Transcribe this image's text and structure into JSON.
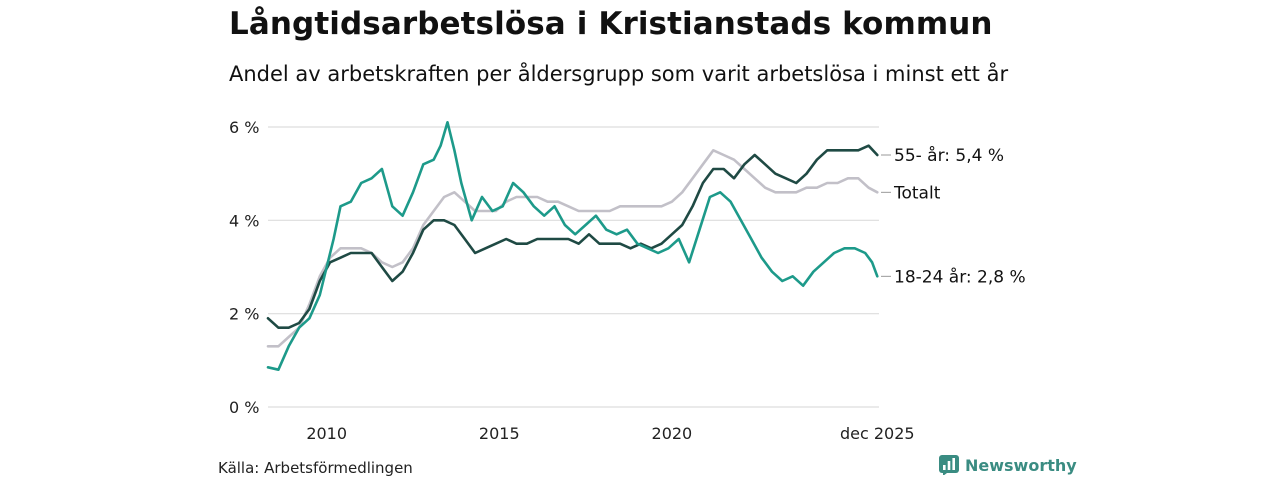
{
  "header": {
    "title": "Långtidsarbetslösa i Kristianstads kommun",
    "subtitle": "Andel av arbetskraften per åldersgrupp som varit arbetslösa i minst ett år"
  },
  "footer": {
    "source": "Källa: Arbetsförmedlingen",
    "brand": "Newsworthy"
  },
  "colors": {
    "age55": "#1f4a44",
    "total": "#c2c0c8",
    "age18_24": "#1d9a8a",
    "grid": "#dddddd",
    "brand": "#3a8c82"
  },
  "chart_data": {
    "type": "line",
    "title": "Långtidsarbetslösa i Kristianstads kommun",
    "xlabel": "",
    "ylabel": "",
    "xlim": [
      2008.3,
      2026.0
    ],
    "ylim": [
      0,
      6
    ],
    "yticks": [
      0,
      2,
      4,
      6
    ],
    "ytick_labels": [
      "0 %",
      "2 %",
      "4 %",
      "6 %"
    ],
    "xticks": [
      2010,
      2015,
      2020,
      2025.95
    ],
    "xtick_labels": [
      "2010",
      "2015",
      "2020",
      "dec 2025"
    ],
    "grid": true,
    "series": [
      {
        "name": "Totalt",
        "label": "Totalt",
        "color": "#c2c0c8",
        "x": [
          2008.3,
          2008.6,
          2008.9,
          2009.2,
          2009.5,
          2009.8,
          2010.1,
          2010.4,
          2010.7,
          2011.0,
          2011.3,
          2011.6,
          2011.9,
          2012.2,
          2012.5,
          2012.8,
          2013.1,
          2013.4,
          2013.7,
          2014.0,
          2014.3,
          2014.6,
          2014.9,
          2015.2,
          2015.5,
          2015.8,
          2016.1,
          2016.4,
          2016.7,
          2017.0,
          2017.3,
          2017.6,
          2017.9,
          2018.2,
          2018.5,
          2018.8,
          2019.1,
          2019.4,
          2019.7,
          2020.0,
          2020.3,
          2020.6,
          2020.9,
          2021.2,
          2021.5,
          2021.8,
          2022.1,
          2022.4,
          2022.7,
          2023.0,
          2023.3,
          2023.6,
          2023.9,
          2024.2,
          2024.5,
          2024.8,
          2025.1,
          2025.4,
          2025.7,
          2025.95
        ],
        "values": [
          1.3,
          1.3,
          1.5,
          1.7,
          2.2,
          2.8,
          3.2,
          3.4,
          3.4,
          3.4,
          3.3,
          3.1,
          3.0,
          3.1,
          3.4,
          3.9,
          4.2,
          4.5,
          4.6,
          4.4,
          4.2,
          4.2,
          4.2,
          4.4,
          4.5,
          4.5,
          4.5,
          4.4,
          4.4,
          4.3,
          4.2,
          4.2,
          4.2,
          4.2,
          4.3,
          4.3,
          4.3,
          4.3,
          4.3,
          4.4,
          4.6,
          4.9,
          5.2,
          5.5,
          5.4,
          5.3,
          5.1,
          4.9,
          4.7,
          4.6,
          4.6,
          4.6,
          4.7,
          4.7,
          4.8,
          4.8,
          4.9,
          4.9,
          4.7,
          4.6
        ]
      },
      {
        "name": "55- år",
        "label": "55- år: 5,4 %",
        "color": "#1f4a44",
        "x": [
          2008.3,
          2008.6,
          2008.9,
          2009.2,
          2009.5,
          2009.8,
          2010.1,
          2010.4,
          2010.7,
          2011.0,
          2011.3,
          2011.6,
          2011.9,
          2012.2,
          2012.5,
          2012.8,
          2013.1,
          2013.4,
          2013.7,
          2014.0,
          2014.3,
          2014.6,
          2014.9,
          2015.2,
          2015.5,
          2015.8,
          2016.1,
          2016.4,
          2016.7,
          2017.0,
          2017.3,
          2017.6,
          2017.9,
          2018.2,
          2018.5,
          2018.8,
          2019.1,
          2019.4,
          2019.7,
          2020.0,
          2020.3,
          2020.6,
          2020.9,
          2021.2,
          2021.5,
          2021.8,
          2022.1,
          2022.4,
          2022.7,
          2023.0,
          2023.3,
          2023.6,
          2023.9,
          2024.2,
          2024.5,
          2024.8,
          2025.1,
          2025.4,
          2025.7,
          2025.95
        ],
        "values": [
          1.9,
          1.7,
          1.7,
          1.8,
          2.1,
          2.7,
          3.1,
          3.2,
          3.3,
          3.3,
          3.3,
          3.0,
          2.7,
          2.9,
          3.3,
          3.8,
          4.0,
          4.0,
          3.9,
          3.6,
          3.3,
          3.4,
          3.5,
          3.6,
          3.5,
          3.5,
          3.6,
          3.6,
          3.6,
          3.6,
          3.5,
          3.7,
          3.5,
          3.5,
          3.5,
          3.4,
          3.5,
          3.4,
          3.5,
          3.7,
          3.9,
          4.3,
          4.8,
          5.1,
          5.1,
          4.9,
          5.2,
          5.4,
          5.2,
          5.0,
          4.9,
          4.8,
          5.0,
          5.3,
          5.5,
          5.5,
          5.5,
          5.5,
          5.6,
          5.4
        ]
      },
      {
        "name": "18-24 år",
        "label": "18-24 år: 2,8 %",
        "color": "#1d9a8a",
        "x": [
          2008.3,
          2008.6,
          2008.9,
          2009.2,
          2009.5,
          2009.8,
          2010.0,
          2010.2,
          2010.4,
          2010.7,
          2011.0,
          2011.3,
          2011.6,
          2011.9,
          2012.2,
          2012.5,
          2012.8,
          2013.1,
          2013.3,
          2013.5,
          2013.7,
          2013.9,
          2014.2,
          2014.5,
          2014.8,
          2015.1,
          2015.4,
          2015.7,
          2016.0,
          2016.3,
          2016.6,
          2016.9,
          2017.2,
          2017.5,
          2017.8,
          2018.1,
          2018.4,
          2018.7,
          2019.0,
          2019.3,
          2019.6,
          2019.9,
          2020.2,
          2020.5,
          2020.8,
          2021.1,
          2021.4,
          2021.7,
          2022.0,
          2022.3,
          2022.6,
          2022.9,
          2023.2,
          2023.5,
          2023.8,
          2024.1,
          2024.4,
          2024.7,
          2025.0,
          2025.3,
          2025.6,
          2025.8,
          2025.95
        ],
        "values": [
          0.85,
          0.8,
          1.3,
          1.7,
          1.9,
          2.4,
          3.0,
          3.6,
          4.3,
          4.4,
          4.8,
          4.9,
          5.1,
          4.3,
          4.1,
          4.6,
          5.2,
          5.3,
          5.6,
          6.1,
          5.5,
          4.8,
          4.0,
          4.5,
          4.2,
          4.3,
          4.8,
          4.6,
          4.3,
          4.1,
          4.3,
          3.9,
          3.7,
          3.9,
          4.1,
          3.8,
          3.7,
          3.8,
          3.5,
          3.4,
          3.3,
          3.4,
          3.6,
          3.1,
          3.8,
          4.5,
          4.6,
          4.4,
          4.0,
          3.6,
          3.2,
          2.9,
          2.7,
          2.8,
          2.6,
          2.9,
          3.1,
          3.3,
          3.4,
          3.4,
          3.3,
          3.1,
          2.8
        ]
      }
    ]
  }
}
